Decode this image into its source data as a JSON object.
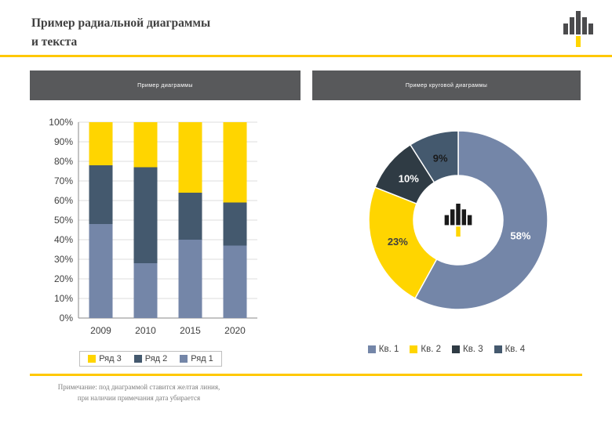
{
  "slide": {
    "title_line1": "Пример радиальной диаграммы",
    "title_line2": "и текста",
    "note_line1": "Примечание: под диаграммой ставится желтая линия,",
    "note_line2": "при наличии примечания дата убирается"
  },
  "headers": {
    "left_caption": "Пример диаграммы",
    "right_caption": "Пример круговой диаграммы"
  },
  "colors": {
    "yellow": "#FFD500",
    "blue": "#7486A8",
    "slate": "#44596E",
    "charcoal": "#2F3B44",
    "header_bg": "#58595B",
    "accent": "#FFC800",
    "axis_text": "#3F3F3F",
    "note_text": "#7F7F7F"
  },
  "chart_data": [
    {
      "type": "bar",
      "stacked": true,
      "title": "Пример диаграммы",
      "categories": [
        "2009",
        "2010",
        "2015",
        "2020"
      ],
      "series": [
        {
          "name": "Ряд 1",
          "color_key": "blue",
          "values": [
            48,
            28,
            40,
            37
          ]
        },
        {
          "name": "Ряд 2",
          "color_key": "slate",
          "values": [
            30,
            49,
            24,
            22
          ]
        },
        {
          "name": "Ряд 3",
          "color_key": "yellow",
          "values": [
            22,
            23,
            36,
            41
          ]
        }
      ],
      "ylim": [
        0,
        100
      ],
      "ytick_step": 10,
      "ytick_format": "percent",
      "grid": true,
      "legend_position": "bottom",
      "legend": [
        {
          "label": "Ряд 3",
          "color_key": "yellow"
        },
        {
          "label": "Ряд 2",
          "color_key": "slate"
        },
        {
          "label": "Ряд 1",
          "color_key": "blue"
        }
      ]
    },
    {
      "type": "pie",
      "donut": true,
      "title": "Пример круговой диаграммы",
      "labels": [
        "Кв. 1",
        "Кв. 2",
        "Кв. 3",
        "Кв. 4"
      ],
      "values": [
        58,
        23,
        10,
        9
      ],
      "color_keys": [
        "blue",
        "yellow",
        "charcoal",
        "slate"
      ],
      "data_labels": [
        "58%",
        "23%",
        "10%",
        "9%"
      ],
      "data_label_colors": [
        "#FFFFFF",
        "#3F3F3F",
        "#FFFFFF",
        "#1A1A1A"
      ],
      "legend_position": "bottom",
      "legend": [
        {
          "label": "Кв. 1",
          "color_key": "blue"
        },
        {
          "label": "Кв. 2",
          "color_key": "yellow"
        },
        {
          "label": "Кв. 3",
          "color_key": "charcoal"
        },
        {
          "label": "Кв. 4",
          "color_key": "slate"
        }
      ]
    }
  ]
}
